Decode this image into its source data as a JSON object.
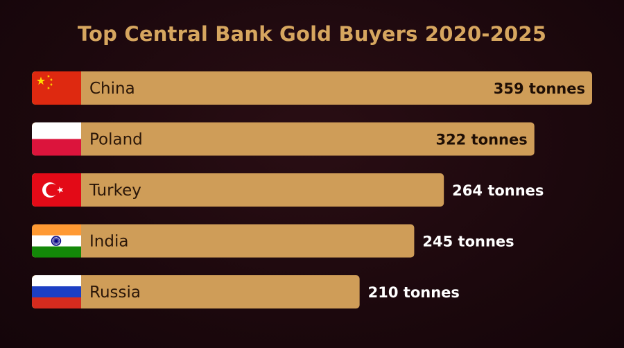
{
  "chart_data": {
    "type": "bar",
    "orientation": "horizontal",
    "title": "Top Central Bank Gold Buyers 2020-2025",
    "categories": [
      "China",
      "Poland",
      "Turkey",
      "India",
      "Russia"
    ],
    "values": [
      359,
      322,
      264,
      245,
      210
    ],
    "value_labels": [
      "359 tonnes",
      "322 tonnes",
      "264 tonnes",
      "245 tonnes",
      "210 tonnes"
    ],
    "flags": [
      "china-flag-icon",
      "poland-flag-icon",
      "turkey-flag-icon",
      "india-flag-icon",
      "russia-flag-icon"
    ],
    "xlim": [
      0,
      359
    ],
    "grid": false,
    "legend": "none"
  },
  "colors": {
    "background": "#1c080d",
    "bar": "#cf9d58",
    "title": "#d6a65f"
  }
}
